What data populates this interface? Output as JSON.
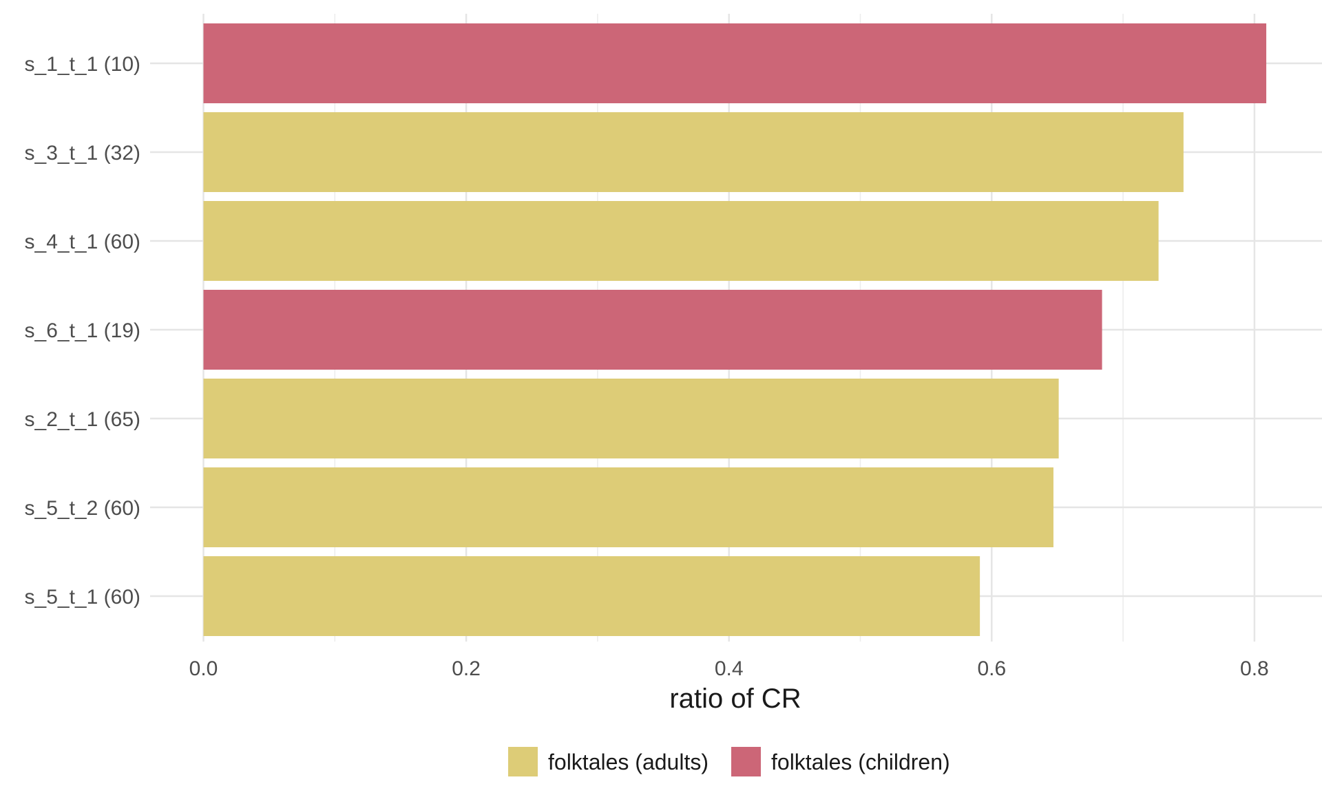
{
  "chart_data": {
    "type": "bar",
    "orientation": "horizontal",
    "xlabel": "ratio of CR",
    "ylabel": "",
    "xlim": [
      0,
      0.85
    ],
    "x_ticks": [
      "0.0",
      "0.2",
      "0.4",
      "0.6",
      "0.8"
    ],
    "x_tick_values": [
      0.0,
      0.2,
      0.4,
      0.6,
      0.8
    ],
    "grid": true,
    "legend_position": "bottom",
    "categories": [
      "s_1_t_1 (10)",
      "s_3_t_1 (32)",
      "s_4_t_1 (60)",
      "s_6_t_1 (19)",
      "s_2_t_1 (65)",
      "s_5_t_2 (60)",
      "s_5_t_1 (60)"
    ],
    "values": [
      0.809,
      0.746,
      0.727,
      0.684,
      0.651,
      0.647,
      0.591
    ],
    "groups": [
      "folktales (children)",
      "folktales (adults)",
      "folktales (adults)",
      "folktales (children)",
      "folktales (adults)",
      "folktales (adults)",
      "folktales (adults)"
    ],
    "legend": [
      {
        "name": "folktales (adults)",
        "color": "#DDCC77"
      },
      {
        "name": "folktales (children)",
        "color": "#CC6677"
      }
    ]
  }
}
